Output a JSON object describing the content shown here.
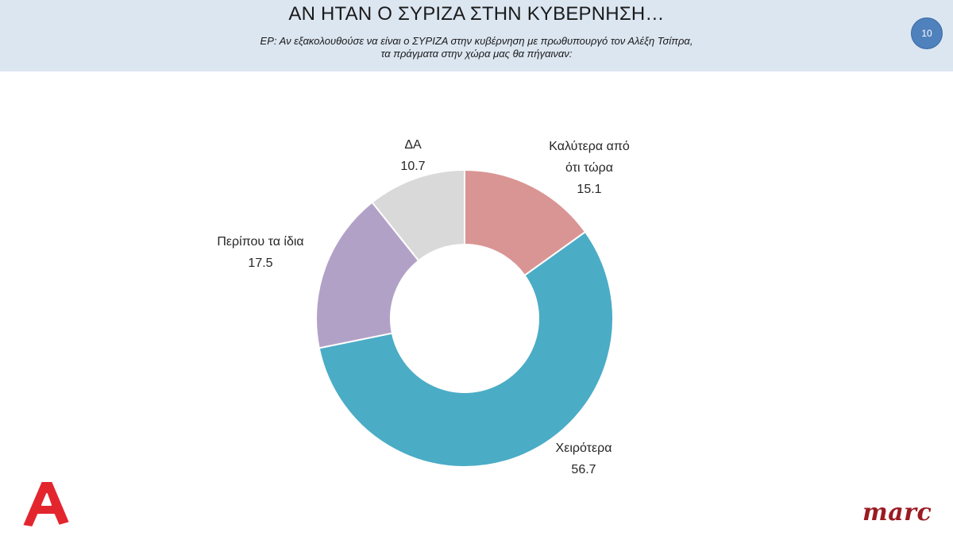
{
  "header": {
    "title": "ΑΝ ΗΤΑΝ Ο ΣΥΡΙΖΑ ΣΤΗΝ ΚΥΒΕΡΝΗΣΗ…",
    "subtitle_line1": "ΕΡ: Αν εξακολουθούσε να είναι ο ΣΥΡΙΖΑ στην κυβέρνηση με πρωθυπουργό τον Αλέξη Τσίπρα,",
    "subtitle_line2": "τα πράγματα στην χώρα μας θα πήγαιναν:",
    "page_number": "10"
  },
  "chart_data": {
    "type": "pie",
    "donut": true,
    "slices": [
      {
        "label_lines": [
          "Καλύτερα από",
          "ότι τώρα"
        ],
        "value": 15.1,
        "value_text": "15.1",
        "color": "#d99594"
      },
      {
        "label_lines": [
          "Χειρότερα"
        ],
        "value": 56.7,
        "value_text": "56.7",
        "color": "#4bacc6"
      },
      {
        "label_lines": [
          "Περίπου τα ίδια"
        ],
        "value": 17.5,
        "value_text": "17.5",
        "color": "#b2a1c7"
      },
      {
        "label_lines": [
          "ΔΑ"
        ],
        "value": 10.7,
        "value_text": "10.7",
        "color": "#d9d9d9"
      }
    ]
  },
  "logos": {
    "left": "alpha-tv-logo",
    "right_text": "marc",
    "left_color": "#e3262e",
    "right_color": "#9b1b23"
  }
}
